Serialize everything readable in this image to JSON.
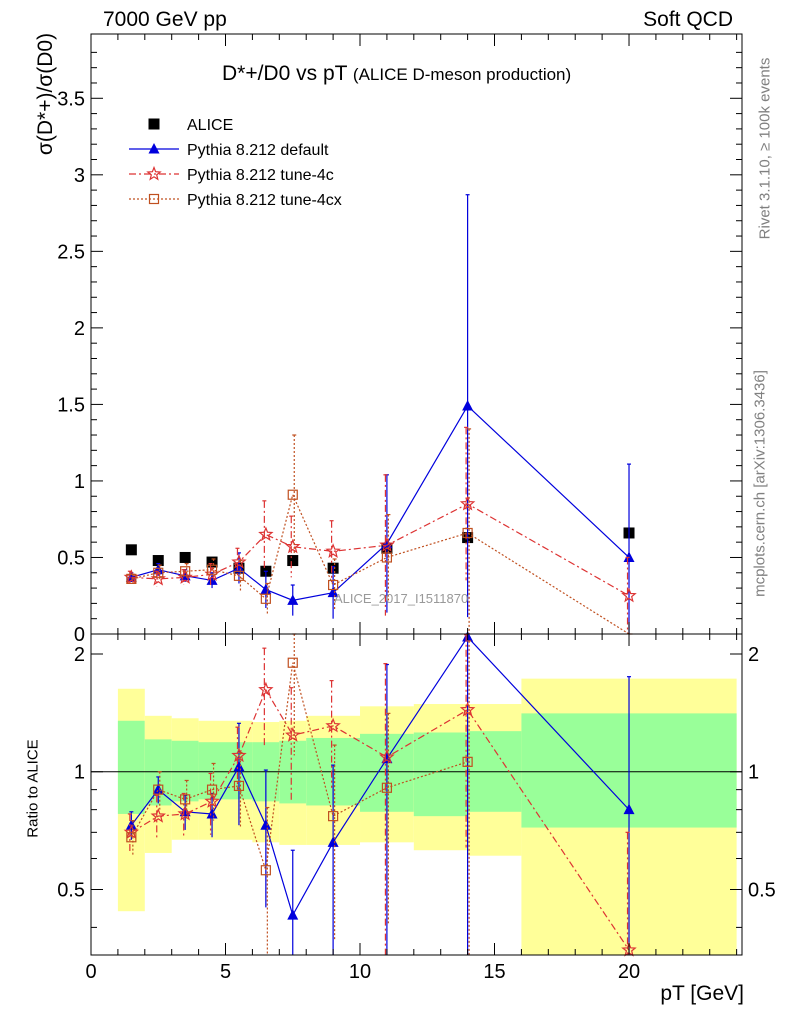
{
  "header": {
    "left": "7000 GeV pp",
    "right": "Soft QCD"
  },
  "side_text": {
    "rivet": "Rivet 3.1.10, ≥ 100k events",
    "mcplots": "mcplots.cern.ch [arXiv:1306.3436]"
  },
  "colors": {
    "alice": "#000000",
    "default": "#0000dd",
    "tune4c": "#dd3333",
    "tune4cx": "#c05020",
    "band_inner": "#99ff99",
    "band_outer": "#ffff99"
  },
  "chart_data": [
    {
      "type": "scatter",
      "panel": "main",
      "title_main": "D*+/D0 vs pT",
      "title_sub": "(ALICE D-meson production)",
      "ylabel": "σ(D*+)/σ(D0)",
      "watermark": "ALICE_2017_I1511870",
      "xlim": [
        0,
        24.2
      ],
      "ylim": [
        0,
        3.92
      ],
      "yticks": [
        {
          "v": 0,
          "label": "0"
        },
        {
          "v": 0.5,
          "label": "0.5"
        },
        {
          "v": 1,
          "label": "1"
        },
        {
          "v": 1.5,
          "label": "1.5"
        },
        {
          "v": 2,
          "label": "2"
        },
        {
          "v": 2.5,
          "label": "2.5"
        },
        {
          "v": 3,
          "label": "3"
        },
        {
          "v": 3.5,
          "label": "3.5"
        }
      ],
      "legend_position": "top-left",
      "series": [
        {
          "name": "ALICE",
          "marker": "square",
          "x": [
            1.5,
            2.5,
            3.5,
            4.5,
            5.5,
            6.5,
            7.5,
            9,
            11,
            14,
            20
          ],
          "y": [
            0.55,
            0.48,
            0.5,
            0.47,
            0.43,
            0.41,
            0.48,
            0.43,
            0.56,
            0.63,
            0.66
          ]
        },
        {
          "name": "Pythia 8.212 default",
          "marker": "triangle",
          "x": [
            1.5,
            2.5,
            3.5,
            4.5,
            5.5,
            6.5,
            7.5,
            9,
            11,
            14,
            20
          ],
          "y": [
            0.37,
            0.42,
            0.38,
            0.35,
            0.43,
            0.29,
            0.22,
            0.27,
            0.59,
            1.49,
            0.5
          ],
          "err": [
            0.03,
            0.04,
            0.04,
            0.05,
            0.1,
            0.12,
            0.1,
            0.17,
            0.45,
            1.38,
            0.61
          ]
        },
        {
          "name": "Pythia 8.212 tune-4c",
          "marker": "star",
          "x": [
            1.5,
            2.5,
            3.5,
            4.5,
            5.5,
            6.5,
            7.5,
            9,
            11,
            14,
            20
          ],
          "y": [
            0.37,
            0.36,
            0.37,
            0.39,
            0.47,
            0.65,
            0.57,
            0.54,
            0.58,
            0.85,
            0.25
          ],
          "err": [
            0.04,
            0.05,
            0.05,
            0.07,
            0.09,
            0.22,
            0.2,
            0.2,
            0.46,
            0.5,
            0.25
          ]
        },
        {
          "name": "Pythia 8.212 tune-4cx",
          "marker": "open-square",
          "x": [
            1.5,
            2.5,
            3.5,
            4.5,
            5.5,
            6.5,
            7.5,
            9,
            11,
            14,
            20
          ],
          "y": [
            0.36,
            0.4,
            0.41,
            0.42,
            0.38,
            0.23,
            0.91,
            0.32,
            0.5,
            0.66,
            0.0
          ],
          "err": [
            0.03,
            0.05,
            0.05,
            0.07,
            0.1,
            0.1,
            0.39,
            0.17,
            0.28,
            0.68,
            0.0
          ]
        }
      ]
    },
    {
      "type": "scatter",
      "panel": "ratio",
      "ylabel": "Ratio to ALICE",
      "xlabel": "pT [GeV]",
      "xlim": [
        0,
        24.2
      ],
      "ylim": [
        0.34,
        2.25
      ],
      "xticks": [
        {
          "v": 0,
          "label": "0"
        },
        {
          "v": 5,
          "label": "5"
        },
        {
          "v": 10,
          "label": "10"
        },
        {
          "v": 15,
          "label": "15"
        },
        {
          "v": 20,
          "label": "20"
        }
      ],
      "yticks": [
        {
          "v": 0.5,
          "label": "0.5"
        },
        {
          "v": 1,
          "label": "1"
        },
        {
          "v": 2,
          "label": "2"
        }
      ],
      "bands": {
        "x_edges": [
          1,
          2,
          3,
          4,
          5,
          6,
          7,
          8,
          10,
          12,
          14,
          16,
          24
        ],
        "inner_lo": [
          0.78,
          0.82,
          0.84,
          0.85,
          0.85,
          0.84,
          0.83,
          0.82,
          0.79,
          0.77,
          0.79,
          0.72
        ],
        "inner_hi": [
          1.35,
          1.21,
          1.2,
          1.19,
          1.19,
          1.19,
          1.2,
          1.22,
          1.25,
          1.26,
          1.27,
          1.41
        ],
        "outer_lo": [
          0.44,
          0.62,
          0.67,
          0.67,
          0.67,
          0.66,
          0.65,
          0.65,
          0.66,
          0.63,
          0.61,
          0.34
        ],
        "outer_hi": [
          1.63,
          1.39,
          1.37,
          1.35,
          1.35,
          1.34,
          1.35,
          1.39,
          1.47,
          1.49,
          1.49,
          1.73
        ]
      },
      "series": [
        {
          "name": "Pythia 8.212 default",
          "x": [
            1.5,
            2.5,
            3.5,
            4.5,
            5.5,
            6.5,
            7.5,
            9,
            11,
            14,
            20
          ],
          "y": [
            0.73,
            0.9,
            0.79,
            0.78,
            1.03,
            0.73,
            0.43,
            0.66,
            1.08,
            2.21,
            0.8
          ],
          "err": [
            0.06,
            0.07,
            0.08,
            0.1,
            0.3,
            0.28,
            0.2,
            0.38,
            0.8,
            2.1,
            0.95
          ]
        },
        {
          "name": "Pythia 8.212 tune-4c",
          "x": [
            1.5,
            2.5,
            3.5,
            4.5,
            5.5,
            6.5,
            7.5,
            9,
            11,
            14,
            20
          ],
          "y": [
            0.7,
            0.77,
            0.78,
            0.84,
            1.1,
            1.62,
            1.24,
            1.31,
            1.09,
            1.44,
            0.35
          ],
          "err": [
            0.08,
            0.1,
            0.1,
            0.15,
            0.2,
            0.45,
            0.4,
            0.4,
            0.8,
            0.8,
            0.35
          ]
        },
        {
          "name": "Pythia 8.212 tune-4cx",
          "x": [
            1.5,
            2.5,
            3.5,
            4.5,
            5.5,
            6.5,
            7.5,
            9,
            11,
            14
          ],
          "y": [
            0.68,
            0.9,
            0.85,
            0.9,
            0.92,
            0.56,
            1.9,
            0.77,
            0.91,
            1.06
          ],
          "err": [
            0.07,
            0.1,
            0.1,
            0.15,
            0.2,
            0.25,
            0.8,
            0.4,
            0.5,
            1.1
          ]
        }
      ]
    }
  ]
}
